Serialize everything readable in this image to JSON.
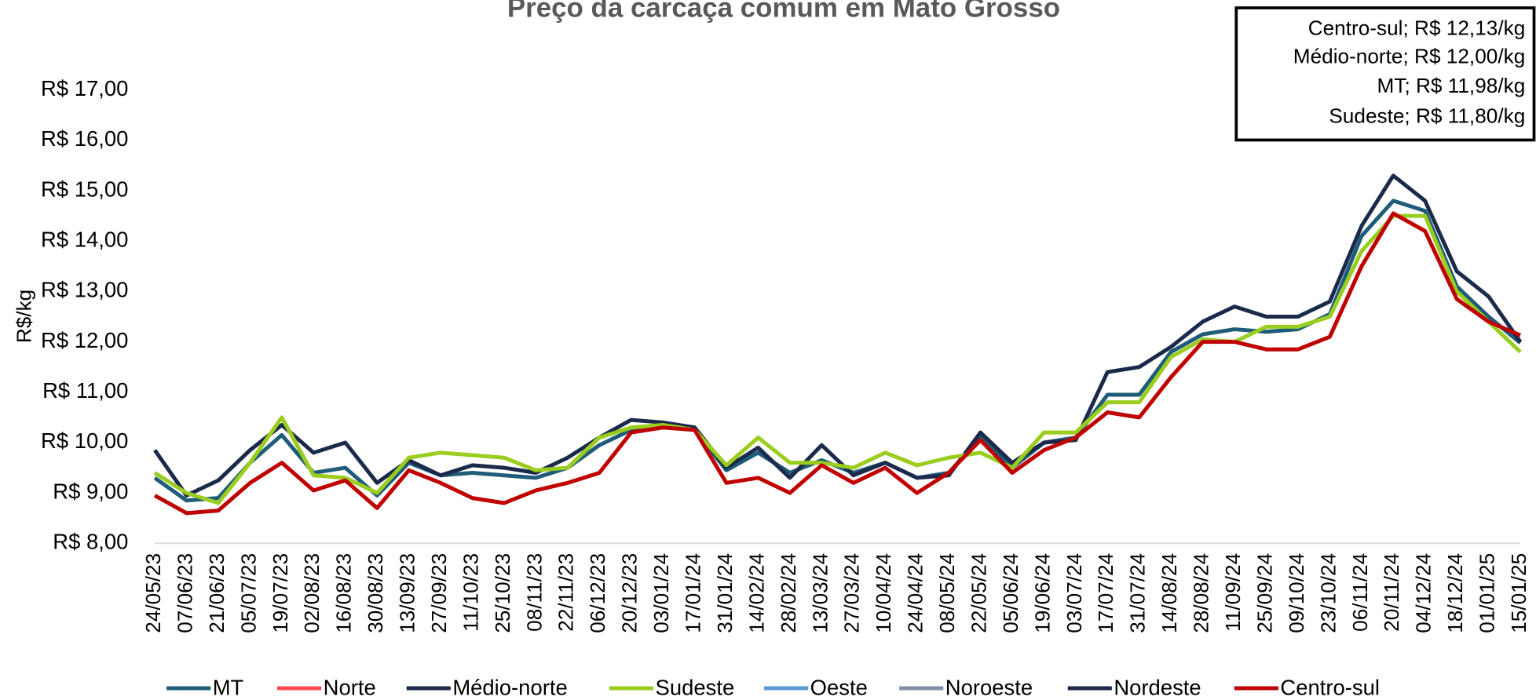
{
  "chart_data": {
    "type": "line",
    "title": "Preço da carcaça comum em Mato Grosso",
    "y_label": "R$/kg",
    "annotations": [
      "Centro-sul; R$ 12,13/kg",
      "Médio-norte; R$ 12,00/kg",
      "MT; R$ 11,98/kg",
      "Sudeste; R$ 11,80/kg"
    ],
    "categories": [
      "24/05/23",
      "07/06/23",
      "21/06/23",
      "05/07/23",
      "19/07/23",
      "02/08/23",
      "16/08/23",
      "30/08/23",
      "13/09/23",
      "27/09/23",
      "11/10/23",
      "25/10/23",
      "08/11/23",
      "22/11/23",
      "06/12/23",
      "20/12/23",
      "03/01/24",
      "17/01/24",
      "31/01/24",
      "14/02/24",
      "28/02/24",
      "13/03/24",
      "27/03/24",
      "10/04/24",
      "24/04/24",
      "08/05/24",
      "22/05/24",
      "05/06/24",
      "19/06/24",
      "03/07/24",
      "17/07/24",
      "31/07/24",
      "14/08/24",
      "28/08/24",
      "11/09/24",
      "25/09/24",
      "09/10/24",
      "23/10/24",
      "06/11/24",
      "20/11/24",
      "04/12/24",
      "18/12/24",
      "01/01/25",
      "15/01/25"
    ],
    "series": [
      {
        "name": "MT",
        "color": "#1f5c7a",
        "values": [
          9.3,
          8.85,
          8.9,
          9.6,
          10.15,
          9.4,
          9.5,
          8.95,
          9.6,
          9.35,
          9.4,
          9.35,
          9.3,
          9.5,
          9.95,
          10.25,
          10.35,
          10.25,
          9.45,
          9.8,
          9.4,
          9.65,
          9.4,
          9.6,
          9.3,
          9.4,
          10.1,
          9.5,
          10.0,
          10.1,
          10.95,
          10.95,
          11.8,
          12.15,
          12.25,
          12.2,
          12.25,
          12.55,
          14.1,
          14.8,
          14.6,
          13.1,
          12.5,
          11.98
        ]
      },
      {
        "name": "Norte",
        "color": "#ff4d4d",
        "values": [
          null,
          null,
          null,
          null,
          null,
          null,
          null,
          null,
          null,
          null,
          null,
          null,
          null,
          null,
          null,
          null,
          null,
          null,
          null,
          null,
          null,
          null,
          null,
          null,
          null,
          null,
          null,
          null,
          null,
          null,
          null,
          null,
          null,
          null,
          null,
          null,
          null,
          null,
          null,
          null,
          null,
          null,
          null,
          null
        ]
      },
      {
        "name": "Médio-norte",
        "color": "#1b2a4a",
        "values": [
          9.85,
          8.95,
          9.25,
          9.85,
          10.35,
          9.8,
          10.0,
          9.2,
          9.65,
          9.35,
          9.55,
          9.5,
          9.4,
          9.7,
          10.1,
          10.45,
          10.4,
          10.3,
          9.5,
          9.9,
          9.3,
          9.95,
          9.35,
          9.6,
          9.3,
          9.35,
          10.2,
          9.6,
          10.0,
          10.05,
          11.4,
          11.5,
          11.9,
          12.4,
          12.7,
          12.5,
          12.5,
          12.8,
          14.3,
          15.3,
          14.8,
          13.4,
          12.9,
          12.0
        ]
      },
      {
        "name": "Sudeste",
        "color": "#9acd1e",
        "values": [
          9.4,
          9.0,
          8.8,
          9.6,
          10.5,
          9.35,
          9.3,
          9.0,
          9.7,
          9.8,
          9.75,
          9.7,
          9.45,
          9.5,
          10.1,
          10.3,
          10.35,
          10.25,
          9.55,
          10.1,
          9.6,
          9.6,
          9.5,
          9.8,
          9.55,
          9.7,
          9.8,
          9.5,
          10.2,
          10.2,
          10.8,
          10.8,
          11.7,
          12.05,
          12.0,
          12.3,
          12.3,
          12.5,
          13.8,
          14.5,
          14.5,
          13.0,
          12.4,
          11.8
        ]
      },
      {
        "name": "Oeste",
        "color": "#5b9bd5",
        "values": [
          null,
          null,
          null,
          null,
          null,
          null,
          null,
          null,
          null,
          null,
          null,
          null,
          null,
          null,
          null,
          null,
          null,
          null,
          null,
          null,
          null,
          null,
          null,
          null,
          null,
          null,
          null,
          null,
          null,
          null,
          null,
          null,
          null,
          null,
          null,
          null,
          null,
          null,
          null,
          null,
          null,
          null,
          null,
          null
        ]
      },
      {
        "name": "Noroeste",
        "color": "#7f8fa6",
        "values": [
          null,
          null,
          null,
          null,
          null,
          null,
          null,
          null,
          null,
          null,
          null,
          null,
          null,
          null,
          null,
          null,
          null,
          null,
          null,
          null,
          null,
          null,
          null,
          null,
          null,
          null,
          null,
          null,
          null,
          null,
          null,
          null,
          null,
          null,
          null,
          null,
          null,
          null,
          null,
          null,
          null,
          null,
          null,
          null
        ]
      },
      {
        "name": "Nordeste",
        "color": "#1b2a4a",
        "values": [
          null,
          null,
          null,
          null,
          null,
          null,
          null,
          null,
          null,
          null,
          null,
          null,
          null,
          null,
          null,
          null,
          null,
          null,
          null,
          null,
          null,
          null,
          null,
          null,
          null,
          null,
          null,
          null,
          null,
          null,
          null,
          null,
          null,
          null,
          null,
          null,
          null,
          null,
          null,
          null,
          null,
          null,
          null,
          null
        ]
      },
      {
        "name": "Centro-sul",
        "color": "#c00000",
        "values": [
          8.95,
          8.6,
          8.65,
          9.2,
          9.6,
          9.05,
          9.25,
          8.7,
          9.45,
          9.2,
          8.9,
          8.8,
          9.05,
          9.2,
          9.4,
          10.2,
          10.3,
          10.25,
          9.2,
          9.3,
          9.0,
          9.55,
          9.2,
          9.5,
          9.0,
          9.4,
          10.05,
          9.4,
          9.85,
          10.1,
          10.6,
          10.5,
          11.3,
          12.0,
          12.0,
          11.85,
          11.85,
          12.1,
          13.5,
          14.55,
          14.2,
          12.85,
          12.4,
          12.13
        ]
      }
    ],
    "ylim": [
      8,
      17.6
    ],
    "yticks": [
      {
        "value": 8,
        "label": "R$ 8,00"
      },
      {
        "value": 9,
        "label": "R$ 9,00"
      },
      {
        "value": 10,
        "label": "R$ 10,00"
      },
      {
        "value": 11,
        "label": "R$ 11,00"
      },
      {
        "value": 12,
        "label": "R$ 12,00"
      },
      {
        "value": 13,
        "label": "R$ 13,00"
      },
      {
        "value": 14,
        "label": "R$ 14,00"
      },
      {
        "value": 15,
        "label": "R$ 15,00"
      },
      {
        "value": 16,
        "label": "R$ 16,00"
      },
      {
        "value": 17,
        "label": "R$ 17,00"
      }
    ],
    "grid": false,
    "legend": "bottom"
  }
}
